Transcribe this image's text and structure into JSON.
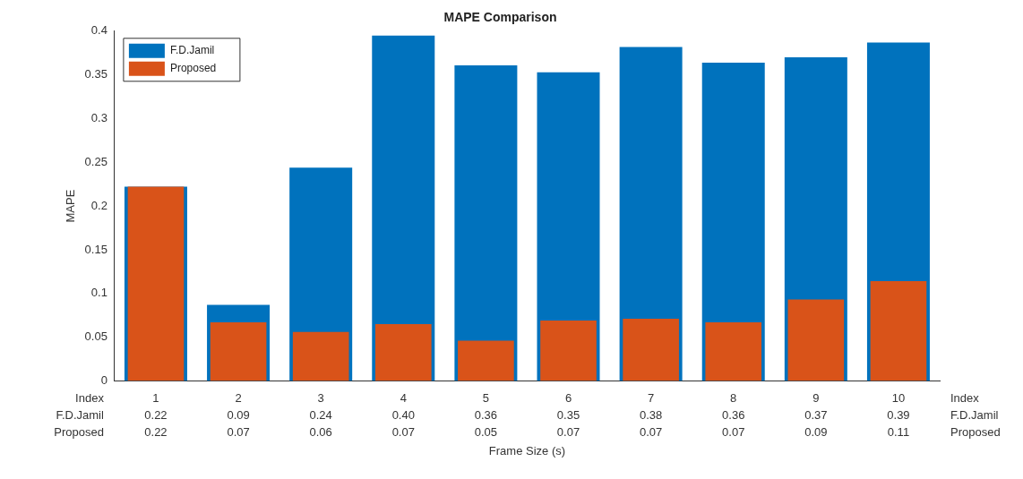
{
  "chart_data": {
    "type": "bar",
    "title": "MAPE Comparison",
    "xlabel": "Frame Size (s)",
    "ylabel": "MAPE",
    "categories": [
      "1",
      "2",
      "3",
      "4",
      "5",
      "6",
      "7",
      "8",
      "9",
      "10"
    ],
    "series": [
      {
        "name": "F.D.Jamil",
        "color": "#0072bd",
        "values": [
          0.222,
          0.087,
          0.244,
          0.395,
          0.361,
          0.353,
          0.382,
          0.364,
          0.37,
          0.387
        ],
        "value_labels": [
          "0.22",
          "0.09",
          "0.24",
          "0.40",
          "0.36",
          "0.35",
          "0.38",
          "0.36",
          "0.37",
          "0.39"
        ]
      },
      {
        "name": "Proposed",
        "color": "#d95319",
        "values": [
          0.222,
          0.067,
          0.056,
          0.065,
          0.046,
          0.069,
          0.071,
          0.067,
          0.093,
          0.114
        ],
        "value_labels": [
          "0.22",
          "0.07",
          "0.06",
          "0.07",
          "0.05",
          "0.07",
          "0.07",
          "0.07",
          "0.09",
          "0.11"
        ]
      }
    ],
    "annotations": [
      "Index"
    ],
    "ylim": [
      0,
      0.4
    ],
    "yticks": [
      0,
      0.05,
      0.1,
      0.15,
      0.2,
      0.25,
      0.3,
      0.35,
      0.4
    ],
    "grid": false,
    "legend": "top left"
  }
}
